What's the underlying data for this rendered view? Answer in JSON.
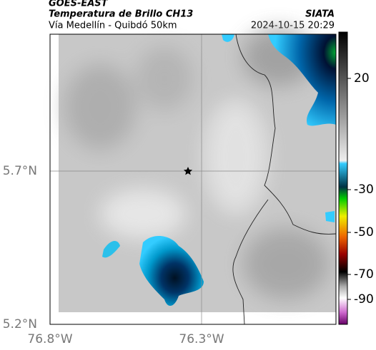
{
  "header": {
    "source": "GOES-EAST",
    "title": "Temperatura de Brillo CH13",
    "subtitle": "Vía Medellín - Quibdó 50km",
    "org": "SIATA",
    "datetime": "2024-10-15 20:29"
  },
  "map": {
    "xticks": [
      "76.8°W",
      "76.3°W"
    ],
    "yticks": [
      "5.7°N",
      "5.2°N"
    ]
  },
  "colorbar": {
    "ticks": [
      20,
      -30,
      -50,
      -70,
      -90
    ]
  }
}
